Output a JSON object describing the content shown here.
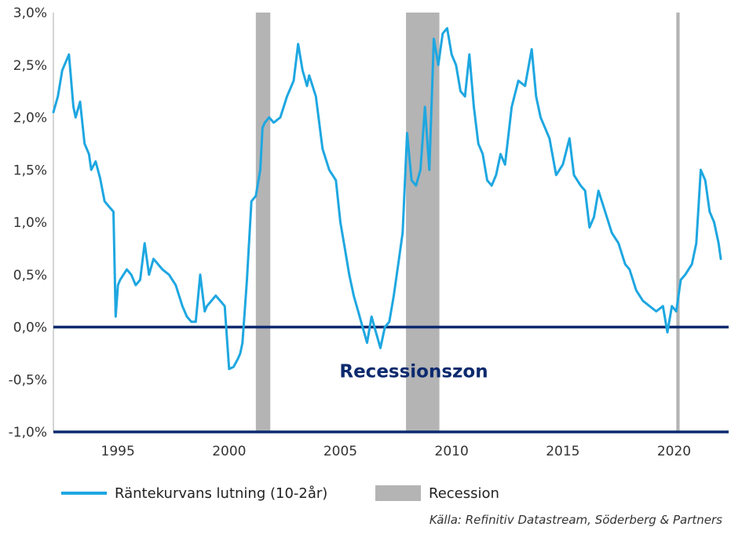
{
  "chart_data": {
    "type": "line",
    "title": "",
    "xlabel": "",
    "ylabel": "",
    "xlim": [
      1992.1,
      2022.1
    ],
    "ylim": [
      -1.0,
      3.0
    ],
    "x_ticks": [
      {
        "value": 1995,
        "label": "1995"
      },
      {
        "value": 2000,
        "label": "2000"
      },
      {
        "value": 2005,
        "label": "2005"
      },
      {
        "value": 2010,
        "label": "2010"
      },
      {
        "value": 2015,
        "label": "2015"
      },
      {
        "value": 2020,
        "label": "2020"
      }
    ],
    "y_ticks": [
      {
        "value": 3.0,
        "label": "3,0%"
      },
      {
        "value": 2.5,
        "label": "2,5%"
      },
      {
        "value": 2.0,
        "label": "2,0%"
      },
      {
        "value": 1.5,
        "label": "1,5%"
      },
      {
        "value": 1.0,
        "label": "1,0%"
      },
      {
        "value": 0.5,
        "label": "0,5%"
      },
      {
        "value": 0.0,
        "label": "0,0%"
      },
      {
        "value": -0.5,
        "label": "-0,5%"
      },
      {
        "value": -1.0,
        "label": "-1,0%"
      }
    ],
    "grid": false,
    "legend_position": "bottom-left",
    "series": [
      {
        "name": "Räntekurvans lutning (10-2år)",
        "color": "#1ea7e1",
        "x": [
          1992.1,
          1992.3,
          1992.5,
          1992.8,
          1993.0,
          1993.1,
          1993.3,
          1993.5,
          1993.7,
          1993.8,
          1994.0,
          1994.2,
          1994.4,
          1994.6,
          1994.8,
          1994.9,
          1995.0,
          1995.1,
          1995.4,
          1995.6,
          1995.8,
          1996.0,
          1996.2,
          1996.4,
          1996.6,
          1996.8,
          1997.0,
          1997.3,
          1997.6,
          1997.9,
          1998.1,
          1998.3,
          1998.5,
          1998.7,
          1998.9,
          1999.0,
          1999.2,
          1999.4,
          1999.6,
          1999.8,
          2000.0,
          2000.2,
          2000.4,
          2000.5,
          2000.6,
          2000.8,
          2001.0,
          2001.2,
          2001.4,
          2001.5,
          2001.6,
          2001.8,
          2002.0,
          2002.3,
          2002.6,
          2002.9,
          2003.1,
          2003.3,
          2003.5,
          2003.6,
          2003.9,
          2004.2,
          2004.5,
          2004.8,
          2005.0,
          2005.2,
          2005.4,
          2005.6,
          2005.8,
          2006.0,
          2006.2,
          2006.4,
          2006.6,
          2006.8,
          2007.0,
          2007.2,
          2007.4,
          2007.6,
          2007.8,
          2008.0,
          2008.2,
          2008.4,
          2008.6,
          2008.8,
          2009.0,
          2009.2,
          2009.4,
          2009.6,
          2009.8,
          2010.0,
          2010.2,
          2010.4,
          2010.6,
          2010.8,
          2011.0,
          2011.2,
          2011.4,
          2011.6,
          2011.8,
          2012.0,
          2012.2,
          2012.4,
          2012.7,
          2013.0,
          2013.3,
          2013.6,
          2013.8,
          2014.0,
          2014.2,
          2014.4,
          2014.7,
          2015.0,
          2015.3,
          2015.5,
          2015.8,
          2016.0,
          2016.2,
          2016.4,
          2016.6,
          2016.9,
          2017.2,
          2017.5,
          2017.8,
          2018.0,
          2018.3,
          2018.6,
          2018.9,
          2019.2,
          2019.5,
          2019.7,
          2019.9,
          2020.1,
          2020.3,
          2020.5,
          2020.8,
          2021.0,
          2021.2,
          2021.4,
          2021.6,
          2021.8,
          2022.0,
          2022.1
        ],
        "values": [
          2.05,
          2.2,
          2.45,
          2.6,
          2.1,
          2.0,
          2.15,
          1.75,
          1.65,
          1.5,
          1.58,
          1.42,
          1.2,
          1.15,
          1.1,
          0.1,
          0.4,
          0.45,
          0.55,
          0.5,
          0.4,
          0.45,
          0.8,
          0.5,
          0.65,
          0.6,
          0.55,
          0.5,
          0.4,
          0.2,
          0.1,
          0.05,
          0.05,
          0.5,
          0.15,
          0.2,
          0.25,
          0.3,
          0.25,
          0.2,
          -0.4,
          -0.38,
          -0.3,
          -0.25,
          -0.15,
          0.45,
          1.2,
          1.25,
          1.5,
          1.9,
          1.95,
          2.0,
          1.95,
          2.0,
          2.2,
          2.35,
          2.7,
          2.45,
          2.3,
          2.4,
          2.2,
          1.7,
          1.5,
          1.4,
          1.0,
          0.75,
          0.5,
          0.3,
          0.15,
          0.0,
          -0.15,
          0.1,
          -0.05,
          -0.2,
          0.0,
          0.05,
          0.3,
          0.6,
          0.9,
          1.85,
          1.4,
          1.35,
          1.5,
          2.1,
          1.5,
          2.75,
          2.5,
          2.8,
          2.85,
          2.6,
          2.5,
          2.25,
          2.2,
          2.6,
          2.1,
          1.75,
          1.65,
          1.4,
          1.35,
          1.45,
          1.65,
          1.55,
          2.1,
          2.35,
          2.3,
          2.65,
          2.2,
          2.0,
          1.9,
          1.8,
          1.45,
          1.55,
          1.8,
          1.45,
          1.35,
          1.3,
          0.95,
          1.05,
          1.3,
          1.1,
          0.9,
          0.8,
          0.6,
          0.55,
          0.35,
          0.25,
          0.2,
          0.15,
          0.2,
          -0.05,
          0.2,
          0.15,
          0.45,
          0.5,
          0.6,
          0.8,
          1.5,
          1.4,
          1.1,
          1.0,
          0.8,
          0.65
        ]
      },
      {
        "name": "Recession",
        "color": "#b4b4b4",
        "periods": [
          [
            2001.2,
            2001.85
          ],
          [
            2007.95,
            2009.45
          ],
          [
            2020.1,
            2020.25
          ]
        ]
      }
    ],
    "reference_lines": [
      {
        "y": 0.0,
        "color": "#0c2a6e"
      },
      {
        "y": -1.0,
        "color": "#0c2a6e"
      }
    ],
    "annotations": [
      {
        "text": "Recessionszon",
        "x": 2008.3,
        "y": -0.42
      }
    ]
  },
  "legend": {
    "line_label": "Räntekurvans lutning (10-2år)",
    "recession_label": "Recession"
  },
  "source": "Källa: Refinitiv Datastream, Söderberg & Partners"
}
